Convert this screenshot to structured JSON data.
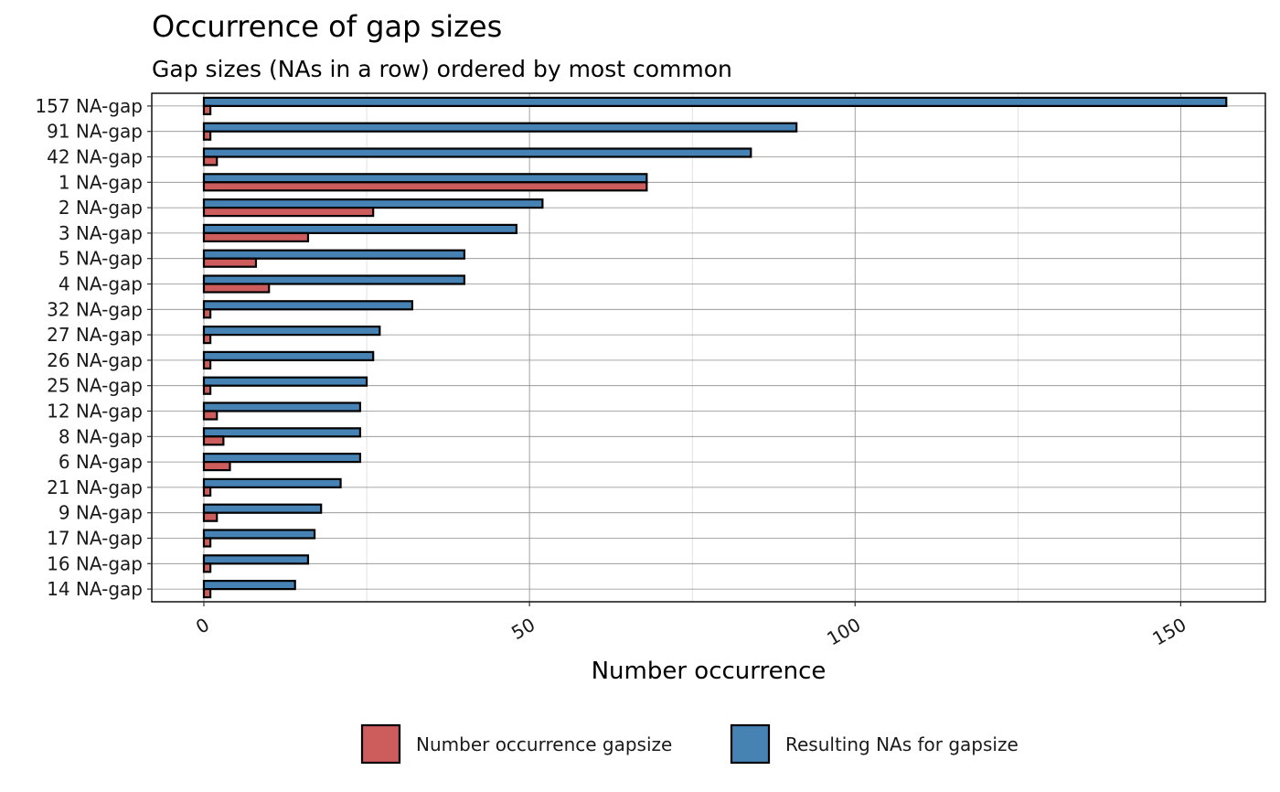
{
  "chart_data": {
    "type": "bar",
    "orientation": "horizontal",
    "title": "Occurrence of gap sizes",
    "subtitle": "Gap sizes (NAs in a row) ordered by most common",
    "xlabel": "Number occurrence",
    "ylabel": "",
    "xlim": [
      -8,
      163
    ],
    "x_ticks": [
      0,
      50,
      100,
      150
    ],
    "x_tick_labels": [
      "0",
      "50",
      "100",
      "150"
    ],
    "grid": true,
    "legend_position": "bottom",
    "categories": [
      "157 NA-gap",
      "91 NA-gap",
      "42 NA-gap",
      "1 NA-gap",
      "2 NA-gap",
      "3 NA-gap",
      "5 NA-gap",
      "4 NA-gap",
      "32 NA-gap",
      "27 NA-gap",
      "26 NA-gap",
      "25 NA-gap",
      "12 NA-gap",
      "8 NA-gap",
      "6 NA-gap",
      "21 NA-gap",
      "9 NA-gap",
      "17 NA-gap",
      "16 NA-gap",
      "14 NA-gap"
    ],
    "series": [
      {
        "name": "Number occurrence gapsize",
        "color": "#cd5c5c",
        "values": [
          1,
          1,
          2,
          68,
          26,
          16,
          8,
          10,
          1,
          1,
          1,
          1,
          2,
          3,
          4,
          1,
          2,
          1,
          1,
          1
        ]
      },
      {
        "name": "Resulting NAs for gapsize",
        "color": "#4682b4",
        "values": [
          157,
          91,
          84,
          68,
          52,
          48,
          40,
          40,
          32,
          27,
          26,
          25,
          24,
          24,
          24,
          21,
          18,
          17,
          16,
          14
        ]
      }
    ]
  }
}
